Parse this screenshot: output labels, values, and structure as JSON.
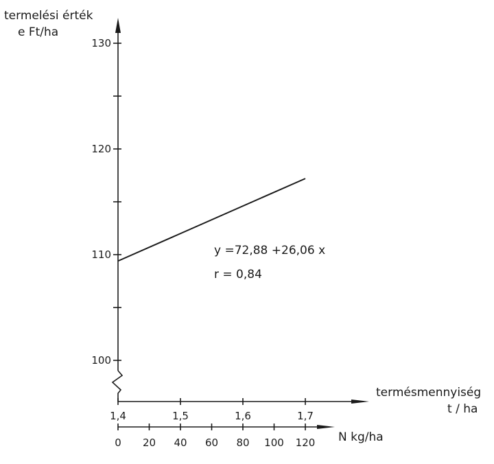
{
  "chart_data": {
    "type": "line",
    "y_axis": {
      "label_line1": "termelési érték",
      "label_line2": "e Ft/ha",
      "range": [
        96,
        132
      ],
      "tick_values": [
        100,
        105,
        110,
        115,
        120,
        125,
        130
      ],
      "tick_labels": [
        "100",
        "",
        "110",
        "",
        "120",
        "",
        "130"
      ],
      "axis_break": true
    },
    "x_axis": {
      "label_line1": "termésmennyiség",
      "label_line2": "t / ha",
      "range": [
        1.4,
        1.82
      ],
      "tick_values": [
        1.4,
        1.5,
        1.6,
        1.7
      ],
      "tick_labels": [
        "1,4",
        "1,5",
        "1,6",
        "1,7"
      ]
    },
    "secondary_x_axis": {
      "label": "N kg/ha",
      "tick_values": [
        0,
        20,
        40,
        60,
        80,
        100,
        120
      ],
      "tick_labels": [
        "0",
        "20",
        "40",
        "60",
        "80",
        "100",
        "120"
      ]
    },
    "series": [
      {
        "x": [
          1.4,
          1.7
        ],
        "y": [
          109.4,
          117.2
        ]
      }
    ],
    "annotations": {
      "equation": "y =72,88 +26,06 x",
      "correlation": "r  =  0,84"
    },
    "grid": false
  }
}
